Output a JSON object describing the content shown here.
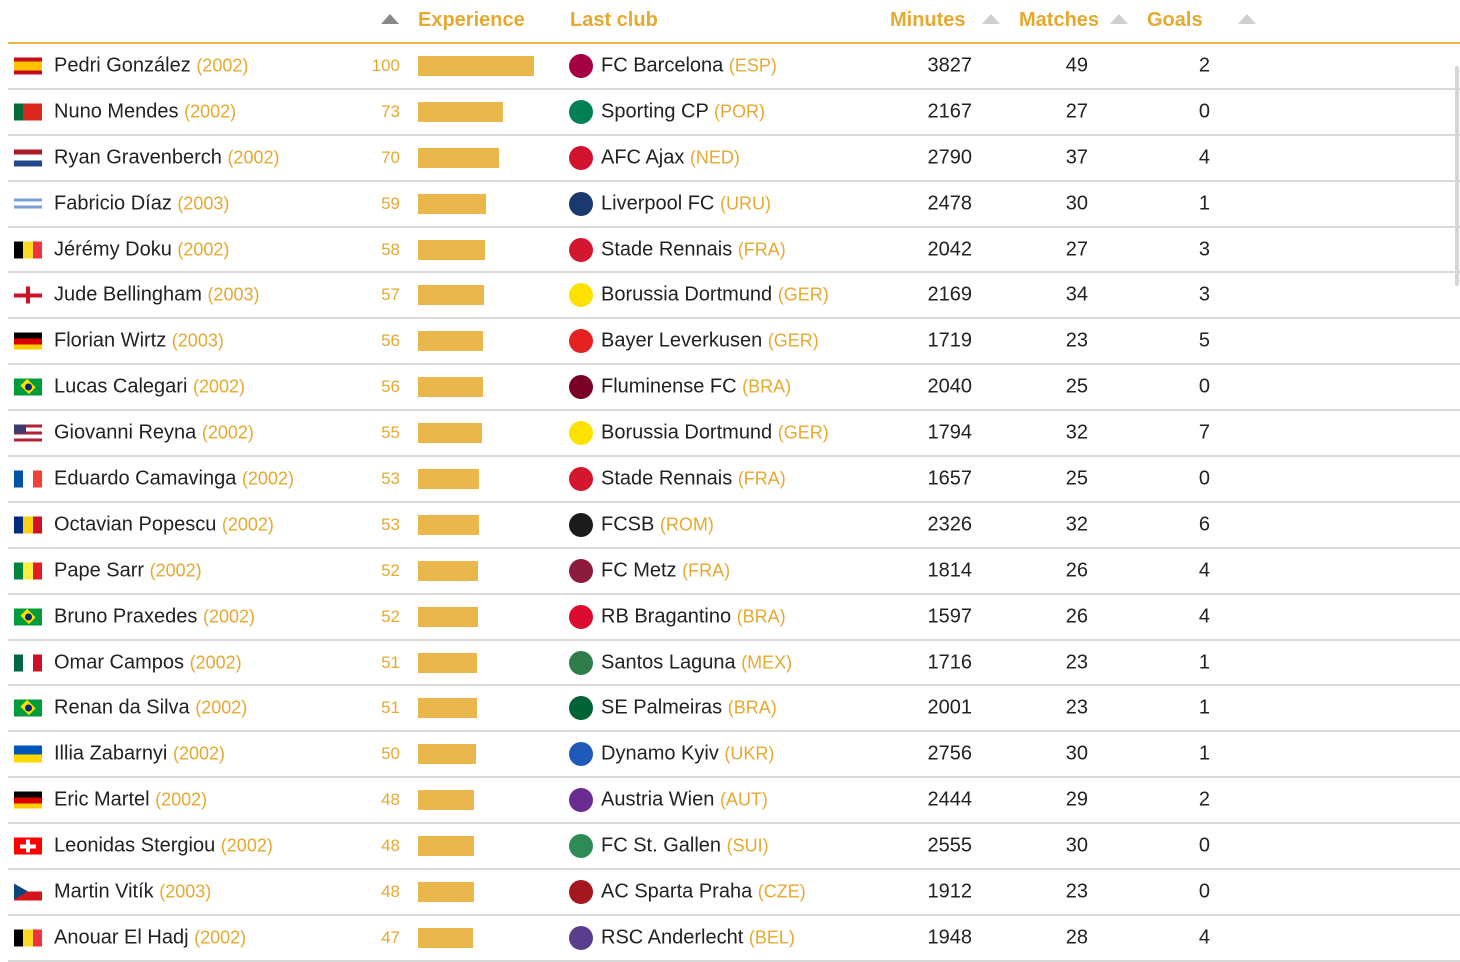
{
  "header": {
    "experience": "Experience",
    "last_club": "Last club",
    "minutes": "Minutes",
    "matches": "Matches",
    "goals": "Goals"
  },
  "accent_color": "#e6a92f",
  "bar_max": 100,
  "rows": [
    {
      "name": "Pedri González",
      "year": "(2002)",
      "exp": "100",
      "club": "FC Barcelona",
      "country": "(ESP)",
      "minutes": "3827",
      "matches": "49",
      "goals": "2",
      "flag": [
        "#c60b1e",
        "#ffc400",
        "#ffc400",
        "#c60b1e"
      ],
      "flag_dir": "rowdir",
      "crest": "#a50044"
    },
    {
      "name": "Nuno Mendes",
      "year": "(2002)",
      "exp": "73",
      "club": "Sporting CP",
      "country": "(POR)",
      "minutes": "2167",
      "matches": "27",
      "goals": "0",
      "flag": [
        "#046a38",
        "#da291c",
        "#da291c"
      ],
      "flag_dir": "col",
      "crest": "#008057"
    },
    {
      "name": "Ryan Gravenberch",
      "year": "(2002)",
      "exp": "70",
      "club": "AFC Ajax",
      "country": "(NED)",
      "minutes": "2790",
      "matches": "37",
      "goals": "4",
      "flag": [
        "#ae1c28",
        "#ffffff",
        "#21468b"
      ],
      "flag_dir": "rowdir",
      "crest": "#d2122e"
    },
    {
      "name": "Fabricio Díaz",
      "year": "(2003)",
      "exp": "59",
      "club": "Liverpool FC",
      "country": "(URU)",
      "minutes": "2478",
      "matches": "30",
      "goals": "1",
      "flag": [
        "#ffffff",
        "#7b9fd6",
        "#ffffff",
        "#7b9fd6",
        "#ffffff"
      ],
      "flag_dir": "rowdir",
      "crest": "#1a3a6e"
    },
    {
      "name": "Jérémy Doku",
      "year": "(2002)",
      "exp": "58",
      "club": "Stade Rennais",
      "country": "(FRA)",
      "minutes": "2042",
      "matches": "27",
      "goals": "3",
      "flag": [
        "#000000",
        "#fdda24",
        "#ef3340"
      ],
      "flag_dir": "col",
      "crest": "#d3172e"
    },
    {
      "name": "Jude Bellingham",
      "year": "(2003)",
      "exp": "57",
      "club": "Borussia Dortmund",
      "country": "(GER)",
      "minutes": "2169",
      "matches": "34",
      "goals": "3",
      "flag": [
        "#ffffff"
      ],
      "flag_dir": "col",
      "flag_cross": "#ce1124",
      "crest": "#fde100"
    },
    {
      "name": "Florian Wirtz",
      "year": "(2003)",
      "exp": "56",
      "club": "Bayer Leverkusen",
      "country": "(GER)",
      "minutes": "1719",
      "matches": "23",
      "goals": "5",
      "flag": [
        "#000000",
        "#dd0000",
        "#ffce00"
      ],
      "flag_dir": "rowdir",
      "crest": "#e32221"
    },
    {
      "name": "Lucas Calegari",
      "year": "(2002)",
      "exp": "56",
      "club": "Fluminense FC",
      "country": "(BRA)",
      "minutes": "2040",
      "matches": "25",
      "goals": "0",
      "flag": [
        "#009c3b"
      ],
      "flag_dir": "col",
      "flag_diamond": "#ffdf00",
      "crest": "#7a0026"
    },
    {
      "name": "Giovanni Reyna",
      "year": "(2002)",
      "exp": "55",
      "club": "Borussia Dortmund",
      "country": "(GER)",
      "minutes": "1794",
      "matches": "32",
      "goals": "7",
      "flag": [
        "#b22234",
        "#ffffff",
        "#b22234",
        "#ffffff",
        "#b22234"
      ],
      "flag_dir": "rowdir",
      "flag_canton": "#3c3b6e",
      "crest": "#fde100"
    },
    {
      "name": "Eduardo Camavinga",
      "year": "(2002)",
      "exp": "53",
      "club": "Stade Rennais",
      "country": "(FRA)",
      "minutes": "1657",
      "matches": "25",
      "goals": "0",
      "flag": [
        "#0055a4",
        "#ffffff",
        "#ef4135"
      ],
      "flag_dir": "col",
      "crest": "#d3172e"
    },
    {
      "name": "Octavian Popescu",
      "year": "(2002)",
      "exp": "53",
      "club": "FCSB",
      "country": "(ROM)",
      "minutes": "2326",
      "matches": "32",
      "goals": "6",
      "flag": [
        "#002b7f",
        "#fcd116",
        "#ce1126"
      ],
      "flag_dir": "col",
      "crest": "#1b1b1b"
    },
    {
      "name": "Pape Sarr",
      "year": "(2002)",
      "exp": "52",
      "club": "FC Metz",
      "country": "(FRA)",
      "minutes": "1814",
      "matches": "26",
      "goals": "4",
      "flag": [
        "#00853f",
        "#fdef42",
        "#e31b23"
      ],
      "flag_dir": "col",
      "crest": "#8d1b3d"
    },
    {
      "name": "Bruno Praxedes",
      "year": "(2002)",
      "exp": "52",
      "club": "RB Bragantino",
      "country": "(BRA)",
      "minutes": "1597",
      "matches": "26",
      "goals": "4",
      "flag": [
        "#009c3b"
      ],
      "flag_dir": "col",
      "flag_diamond": "#ffdf00",
      "crest": "#dd0b2f"
    },
    {
      "name": "Omar Campos",
      "year": "(2002)",
      "exp": "51",
      "club": "Santos Laguna",
      "country": "(MEX)",
      "minutes": "1716",
      "matches": "23",
      "goals": "1",
      "flag": [
        "#006847",
        "#ffffff",
        "#ce1126"
      ],
      "flag_dir": "col",
      "crest": "#2f7d4a"
    },
    {
      "name": "Renan da Silva",
      "year": "(2002)",
      "exp": "51",
      "club": "SE Palmeiras",
      "country": "(BRA)",
      "minutes": "2001",
      "matches": "23",
      "goals": "1",
      "flag": [
        "#009c3b"
      ],
      "flag_dir": "col",
      "flag_diamond": "#ffdf00",
      "crest": "#006437"
    },
    {
      "name": "Illia Zabarnyi",
      "year": "(2002)",
      "exp": "50",
      "club": "Dynamo Kyiv",
      "country": "(UKR)",
      "minutes": "2756",
      "matches": "30",
      "goals": "1",
      "flag": [
        "#0057b7",
        "#ffd700"
      ],
      "flag_dir": "rowdir",
      "crest": "#1e5bb8"
    },
    {
      "name": "Eric Martel",
      "year": "(2002)",
      "exp": "48",
      "club": "Austria Wien",
      "country": "(AUT)",
      "minutes": "2444",
      "matches": "29",
      "goals": "2",
      "flag": [
        "#000000",
        "#dd0000",
        "#ffce00"
      ],
      "flag_dir": "rowdir",
      "crest": "#6a2c91"
    },
    {
      "name": "Leonidas Stergiou",
      "year": "(2002)",
      "exp": "48",
      "club": "FC St. Gallen",
      "country": "(SUI)",
      "minutes": "2555",
      "matches": "30",
      "goals": "0",
      "flag": [
        "#ff0000"
      ],
      "flag_dir": "col",
      "flag_cross": "#ffffff",
      "crest": "#2e8b57"
    },
    {
      "name": "Martin Vitík",
      "year": "(2003)",
      "exp": "48",
      "club": "AC Sparta Praha",
      "country": "(CZE)",
      "minutes": "1912",
      "matches": "23",
      "goals": "0",
      "flag": [
        "#ffffff",
        "#d7141a"
      ],
      "flag_dir": "rowdir",
      "flag_triangle": "#11457e",
      "crest": "#a3171f"
    },
    {
      "name": "Anouar El Hadj",
      "year": "(2002)",
      "exp": "47",
      "club": "RSC Anderlecht",
      "country": "(BEL)",
      "minutes": "1948",
      "matches": "28",
      "goals": "4",
      "flag": [
        "#000000",
        "#fdda24",
        "#ef3340"
      ],
      "flag_dir": "col",
      "crest": "#5a3d8f"
    }
  ]
}
